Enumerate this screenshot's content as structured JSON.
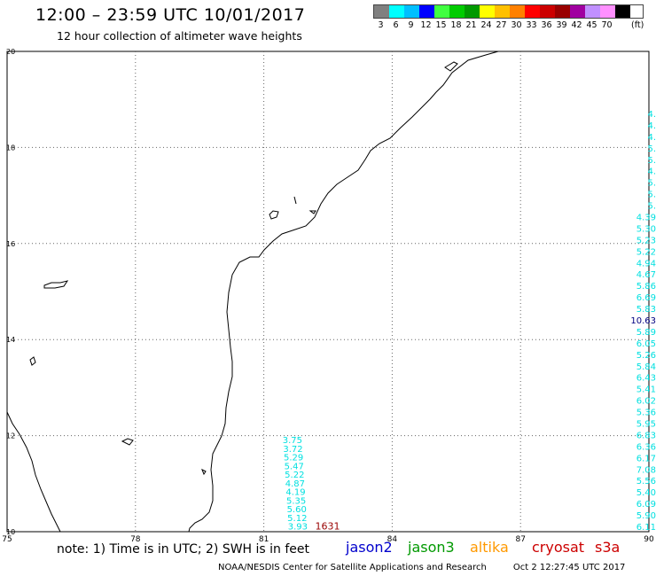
{
  "title": "12:00 – 23:59 UTC 10/01/2017",
  "subtitle": "12 hour collection of altimeter wave heights",
  "legend": {
    "unit": "(ft)",
    "bins": [
      {
        "label": "3",
        "color": "#808080"
      },
      {
        "label": "6",
        "color": "#00ffff"
      },
      {
        "label": "9",
        "color": "#00bfff"
      },
      {
        "label": "12",
        "color": "#0000ff"
      },
      {
        "label": "15",
        "color": "#40ff40"
      },
      {
        "label": "18",
        "color": "#00cc00"
      },
      {
        "label": "21",
        "color": "#009900"
      },
      {
        "label": "24",
        "color": "#ffff00"
      },
      {
        "label": "27",
        "color": "#ffc000"
      },
      {
        "label": "30",
        "color": "#ff8000"
      },
      {
        "label": "33",
        "color": "#ff0000"
      },
      {
        "label": "36",
        "color": "#cc0000"
      },
      {
        "label": "39",
        "color": "#990000"
      },
      {
        "label": "42",
        "color": "#a000a0"
      },
      {
        "label": "45",
        "color": "#c090ff"
      },
      {
        "label": "70",
        "color": "#ff90ff"
      },
      {
        "label": "",
        "color": "#000000"
      }
    ]
  },
  "map": {
    "lon_ticks": [
      "75",
      "78",
      "81",
      "84",
      "87",
      "90"
    ],
    "lat_ticks": [
      "20",
      "18",
      "16",
      "14",
      "12",
      "10"
    ],
    "extent": {
      "lon": [
        75,
        90
      ],
      "lat": [
        10,
        20
      ]
    }
  },
  "tracks": {
    "west": {
      "lon": 81.9,
      "lat_start": 11.9,
      "lat_end": 10.1,
      "color": "#00e0e0",
      "values": [
        "3.75",
        "3.72",
        "5.29",
        "5.47",
        "5.22",
        "4.87",
        "4.19",
        "5.35",
        "5.60",
        "5.12",
        "3.93"
      ]
    },
    "west_extra": {
      "value": "1631",
      "color": "#990000"
    },
    "east": {
      "color": "#00e0e0",
      "values": [
        "4.",
        "4.",
        "4.",
        "5.",
        "5.",
        "4.",
        "5.",
        "5.",
        "5.",
        "4.39",
        "5.30",
        "5.23",
        "5.22",
        "4.94",
        "4.67",
        "5.86",
        "6.69",
        "5.83",
        "10.63",
        "5.89",
        "6.05",
        "5.26",
        "5.84",
        "6.43",
        "5.41",
        "6.02",
        "5.36",
        "5.95",
        "6.83",
        "6.36",
        "6.17",
        "7.08",
        "5.56",
        "5.40",
        "6.09",
        "5.90",
        "6.11"
      ],
      "highlight": {
        "value": "10.63",
        "color": "#000080"
      }
    }
  },
  "note": "note: 1) Time is in UTC; 2) SWH is in feet",
  "satellites": [
    {
      "name": "jason2",
      "color": "#0000cc"
    },
    {
      "name": "jason3",
      "color": "#009900"
    },
    {
      "name": "altika",
      "color": "#ff9900"
    },
    {
      "name": "cryosat",
      "color": "#cc0000"
    },
    {
      "name": "s3a",
      "color": "#cc0000"
    }
  ],
  "credit": "NOAA/NESDIS Center for Satellite Applications and Research",
  "timestamp": "Oct  2 12:27:45 UTC 2017"
}
